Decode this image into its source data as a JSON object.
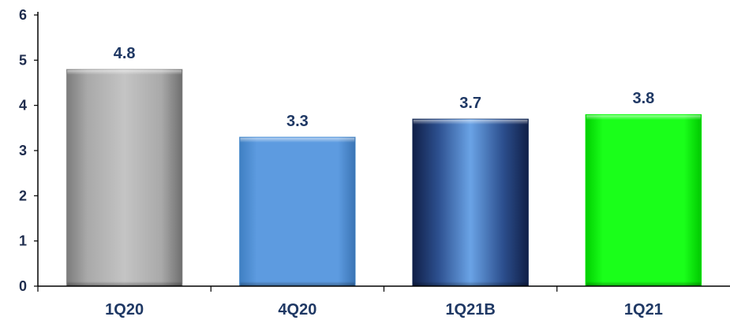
{
  "chart_data": {
    "type": "bar",
    "title": "",
    "xlabel": "",
    "ylabel": "",
    "categories": [
      "1Q20",
      "4Q20",
      "1Q21B",
      "1Q21"
    ],
    "values": [
      4.8,
      3.3,
      3.7,
      3.8
    ],
    "data_labels": [
      "4.8",
      "3.3",
      "3.7",
      "3.8"
    ],
    "ylim": [
      0,
      6
    ],
    "yticks": [
      0,
      1,
      2,
      3,
      4,
      5,
      6
    ],
    "grid": false,
    "legend": "none",
    "bar_styles": [
      "silver-gradient",
      "light-blue",
      "navy-gradient",
      "bright-green"
    ],
    "bar_colors": [
      "#a6a6a6",
      "#5b9bd5",
      "#1f3864",
      "#00ff00"
    ]
  }
}
